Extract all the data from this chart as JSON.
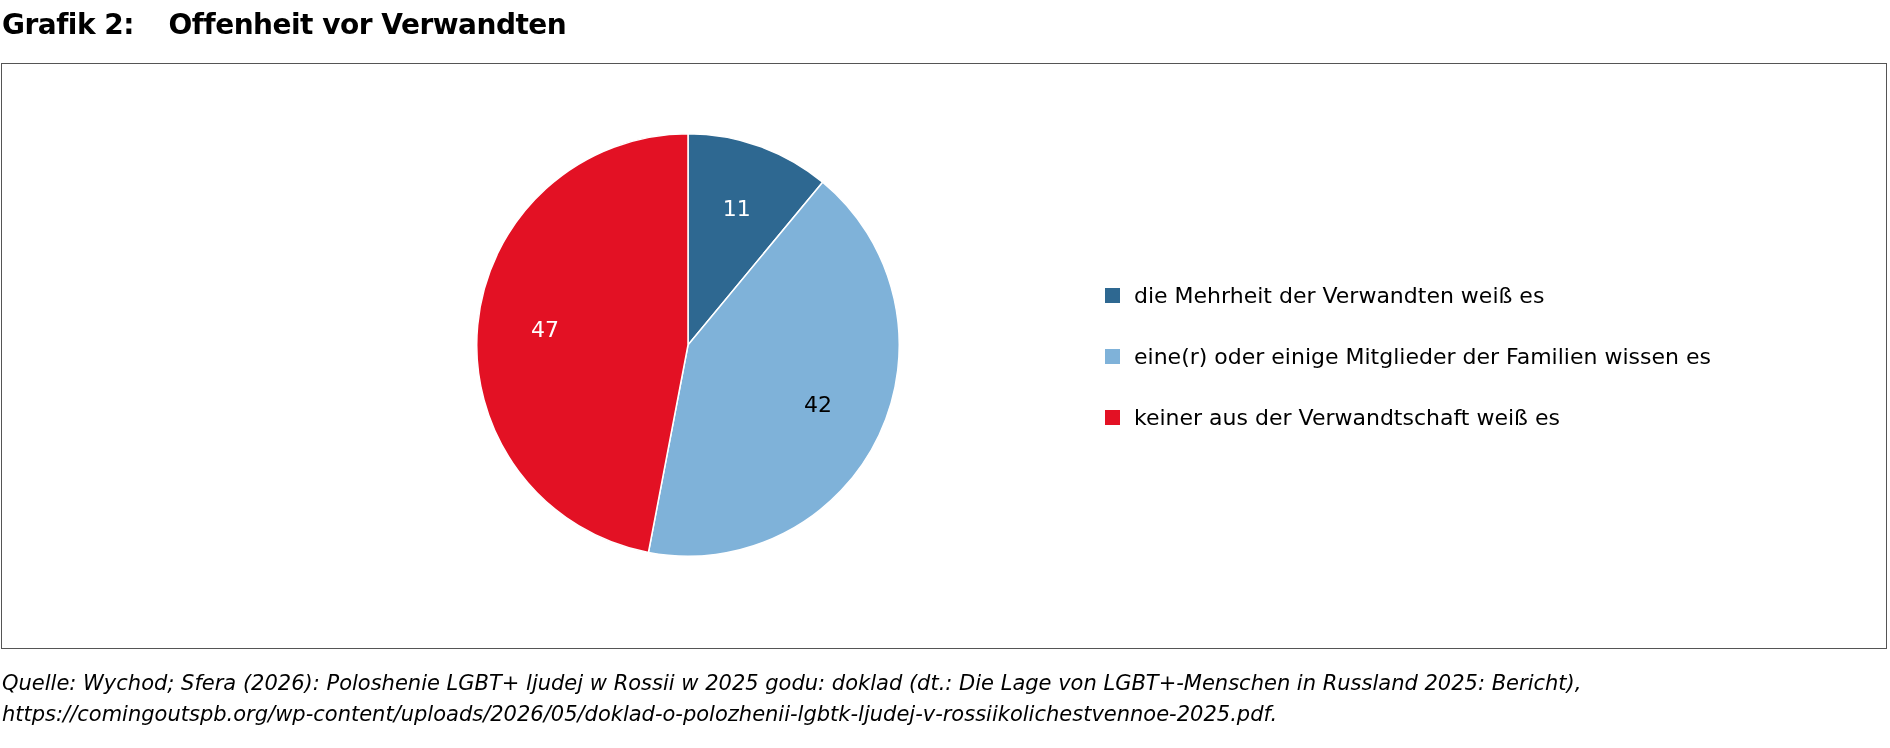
{
  "chart_data": {
    "type": "pie",
    "title": "Grafik 2:\tOffenheit vor Verwandten",
    "categories": [
      "die Mehrheit der Verwandten weiß es",
      "eine(r) oder einige Mitglieder der Familien wissen es",
      "keiner aus der Verwandtschaft weiß es"
    ],
    "values": [
      11,
      42,
      47
    ],
    "colors": [
      "#2e6891",
      "#7fb2d9",
      "#e31124"
    ],
    "data_labels": true,
    "legend": "right",
    "annotations": [
      "Quelle: Wychod; Sfera (2026): Poloshenie LGBT+ ljudej w Rossii w 2025 godu: doklad (dt.: Die Lage von LGBT+-Menschen in Russland 2025: Bericht), https://comingoutspb.org/wp-content/uploads/2026/05/doklad-o-polozhenii-lgbtk-ljudej-v-rossiikolichestvennoe-2025.pdf."
    ]
  }
}
